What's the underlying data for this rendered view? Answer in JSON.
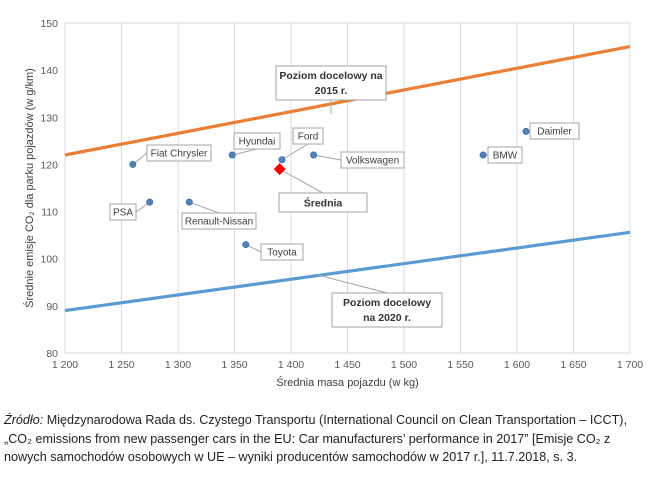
{
  "chart_data": {
    "type": "scatter",
    "xlabel": "Średnia masa pojazdu (w kg)",
    "ylabel": "Średnie emisje CO₂ dla parku pojazdów (w g/km)",
    "xlim": [
      1200,
      1700
    ],
    "ylim": [
      80,
      150
    ],
    "x_ticks": [
      1200,
      1250,
      1300,
      1350,
      1400,
      1450,
      1500,
      1550,
      1600,
      1650,
      1700
    ],
    "x_tick_labels": [
      "1 200",
      "1 250",
      "1 300",
      "1 350",
      "1 400",
      "1 450",
      "1 500",
      "1 550",
      "1 600",
      "1 650",
      "1 700"
    ],
    "y_ticks": [
      80,
      90,
      100,
      110,
      120,
      130,
      140,
      150
    ],
    "y_tick_labels": [
      "80",
      "90",
      "100",
      "110",
      "120",
      "130",
      "140",
      "150"
    ],
    "grid": "vertical",
    "points": [
      {
        "name": "Fiat Chrysler",
        "x": 1260,
        "y": 120
      },
      {
        "name": "PSA",
        "x": 1275,
        "y": 112
      },
      {
        "name": "Renault-Nissan",
        "x": 1310,
        "y": 112
      },
      {
        "name": "Hyundai",
        "x": 1348,
        "y": 122
      },
      {
        "name": "Toyota",
        "x": 1360,
        "y": 103
      },
      {
        "name": "Ford",
        "x": 1392,
        "y": 121
      },
      {
        "name": "Volkswagen",
        "x": 1420,
        "y": 122
      },
      {
        "name": "BMW",
        "x": 1570,
        "y": 122
      },
      {
        "name": "Daimler",
        "x": 1608,
        "y": 127
      }
    ],
    "average": {
      "name": "Średnia",
      "x": 1390,
      "y": 119
    },
    "target_lines": [
      {
        "name": "Poziom docelowy na 2015 r.",
        "label_lines": [
          "Poziom docelowy na",
          "2015 r."
        ],
        "color": "#ed7d31",
        "x": [
          1200,
          1700
        ],
        "y": [
          122,
          145
        ]
      },
      {
        "name": "Poziom docelowy na 2020 r.",
        "label_lines": [
          "Poziom docelowy",
          "na 2020 r."
        ],
        "color": "#5b9bd5",
        "x": [
          1200,
          1700
        ],
        "y": [
          89,
          105.6
        ]
      }
    ],
    "colors": {
      "point": "#4f81bd",
      "average": "#ff0000"
    }
  },
  "source": {
    "label": "Źródło:",
    "text": "Międzynarodowa Rada ds. Czystego Transportu (International Council on Clean Transportation – ICCT), „CO₂ emissions from new passenger cars in the EU: Car manufacturers’ performance in 2017” [Emisje CO₂ z nowych samochodów osobowych w UE – wyniki producentów samochodów w 2017 r.], 11.7.2018, s. 3."
  }
}
